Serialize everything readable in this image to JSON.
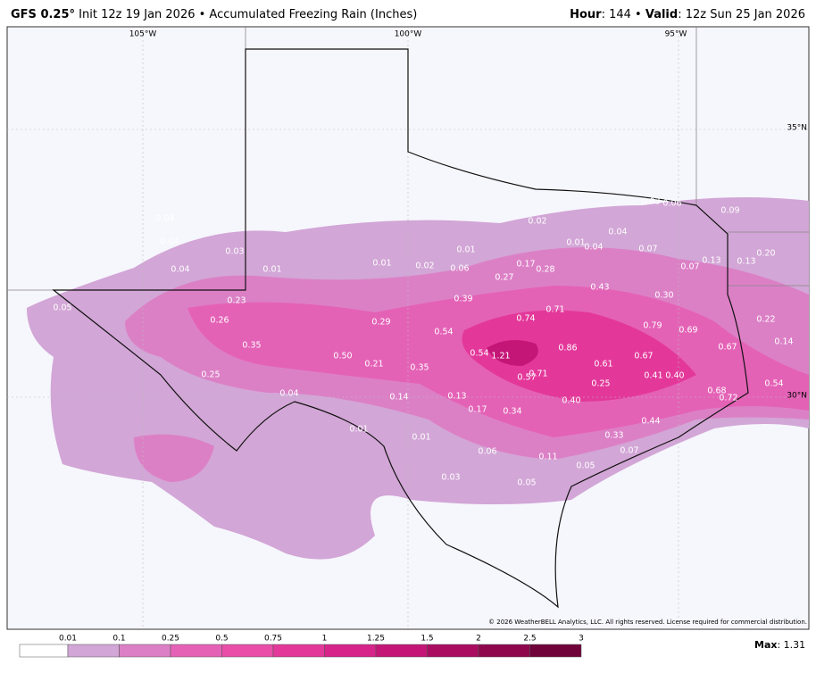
{
  "header": {
    "model": "GFS 0.25°",
    "description": "Init 12z 19 Jan 2026 • Accumulated Freezing Rain (Inches)",
    "hour_label": "Hour",
    "hour": ": 144 • ",
    "valid_label": "Valid",
    "valid": ": 12z Sun 25 Jan 2026"
  },
  "grid_labels": [
    "105°W",
    "100°W",
    "95°W",
    "35°N",
    "30°N"
  ],
  "map_labels": [
    "0.04",
    "0.04",
    "0.04",
    "0.03",
    "0.01",
    "0.01",
    "0.02",
    "0.01",
    "0.06",
    "0.02",
    "0.03",
    "0.06",
    "0.09",
    "0.04",
    "0.01",
    "0.04",
    "0.07",
    "0.20",
    "0.13",
    "0.13",
    "0.07",
    "0.17",
    "0.28",
    "0.27",
    "0.43",
    "0.05",
    "0.23",
    "0.39",
    "0.30",
    "0.71",
    "0.26",
    "0.29",
    "0.74",
    "0.79",
    "0.69",
    "0.22",
    "0.54",
    "0.35",
    "0.14",
    "0.67",
    "0.86",
    "0.50",
    "0.21",
    "0.54",
    "1.21",
    "0.67",
    "0.61",
    "0.35",
    "0.57",
    "0.71",
    "0.41",
    "0.40",
    "0.25",
    "0.25",
    "0.54",
    "0.68",
    "0.72",
    "0.04",
    "0.14",
    "0.13",
    "0.40",
    "0.17",
    "0.34",
    "0.44",
    "0.01",
    "0.01",
    "0.33",
    "0.06",
    "0.07",
    "0.11",
    "0.05",
    "0.03",
    "0.05"
  ],
  "legend": {
    "ticks": [
      "0.01",
      "0.1",
      "0.25",
      "0.5",
      "0.75",
      "1",
      "1.25",
      "1.5",
      "2",
      "2.5",
      "3"
    ],
    "colors": [
      "#ffffff",
      "#d2a6d6",
      "#dc80c6",
      "#e462b6",
      "#e84ea8",
      "#e3389a",
      "#d6248a",
      "#c41676",
      "#aa0c60",
      "#8e074c",
      "#70033a"
    ]
  },
  "copyright": "© 2026 WeatherBELL Analytics, LLC. All rights reserved. License required for commercial distribution.",
  "max_label": "Max",
  "max_value": ": 1.31"
}
